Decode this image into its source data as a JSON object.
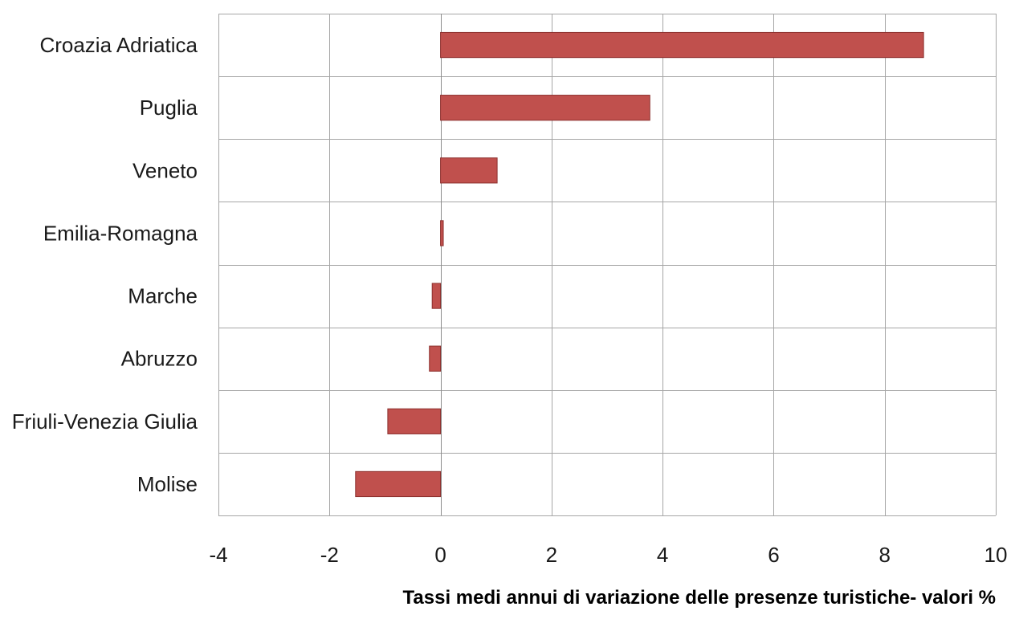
{
  "chart_data": {
    "type": "bar",
    "orientation": "horizontal",
    "categories": [
      "Croazia Adriatica",
      "Puglia",
      "Veneto",
      "Emilia-Romagna",
      "Marche",
      "Abruzzo",
      "Friuli-Venezia Giulia",
      "Molise"
    ],
    "values": [
      8.7,
      3.77,
      1.02,
      0.05,
      -0.15,
      -0.2,
      -0.95,
      -1.53
    ],
    "xlim": [
      -4,
      10
    ],
    "xticks": [
      -4,
      -2,
      0,
      2,
      4,
      6,
      8,
      10
    ],
    "xlabel": "Tassi medi annui di variazione delle presenze turistiche- valori %",
    "ylabel": "",
    "title": "",
    "grid": true,
    "legend": "none",
    "colors": {
      "bar_fill": "#c0504d",
      "bar_stroke": "#8c2f2d",
      "grid": "#a6a6a6"
    }
  }
}
